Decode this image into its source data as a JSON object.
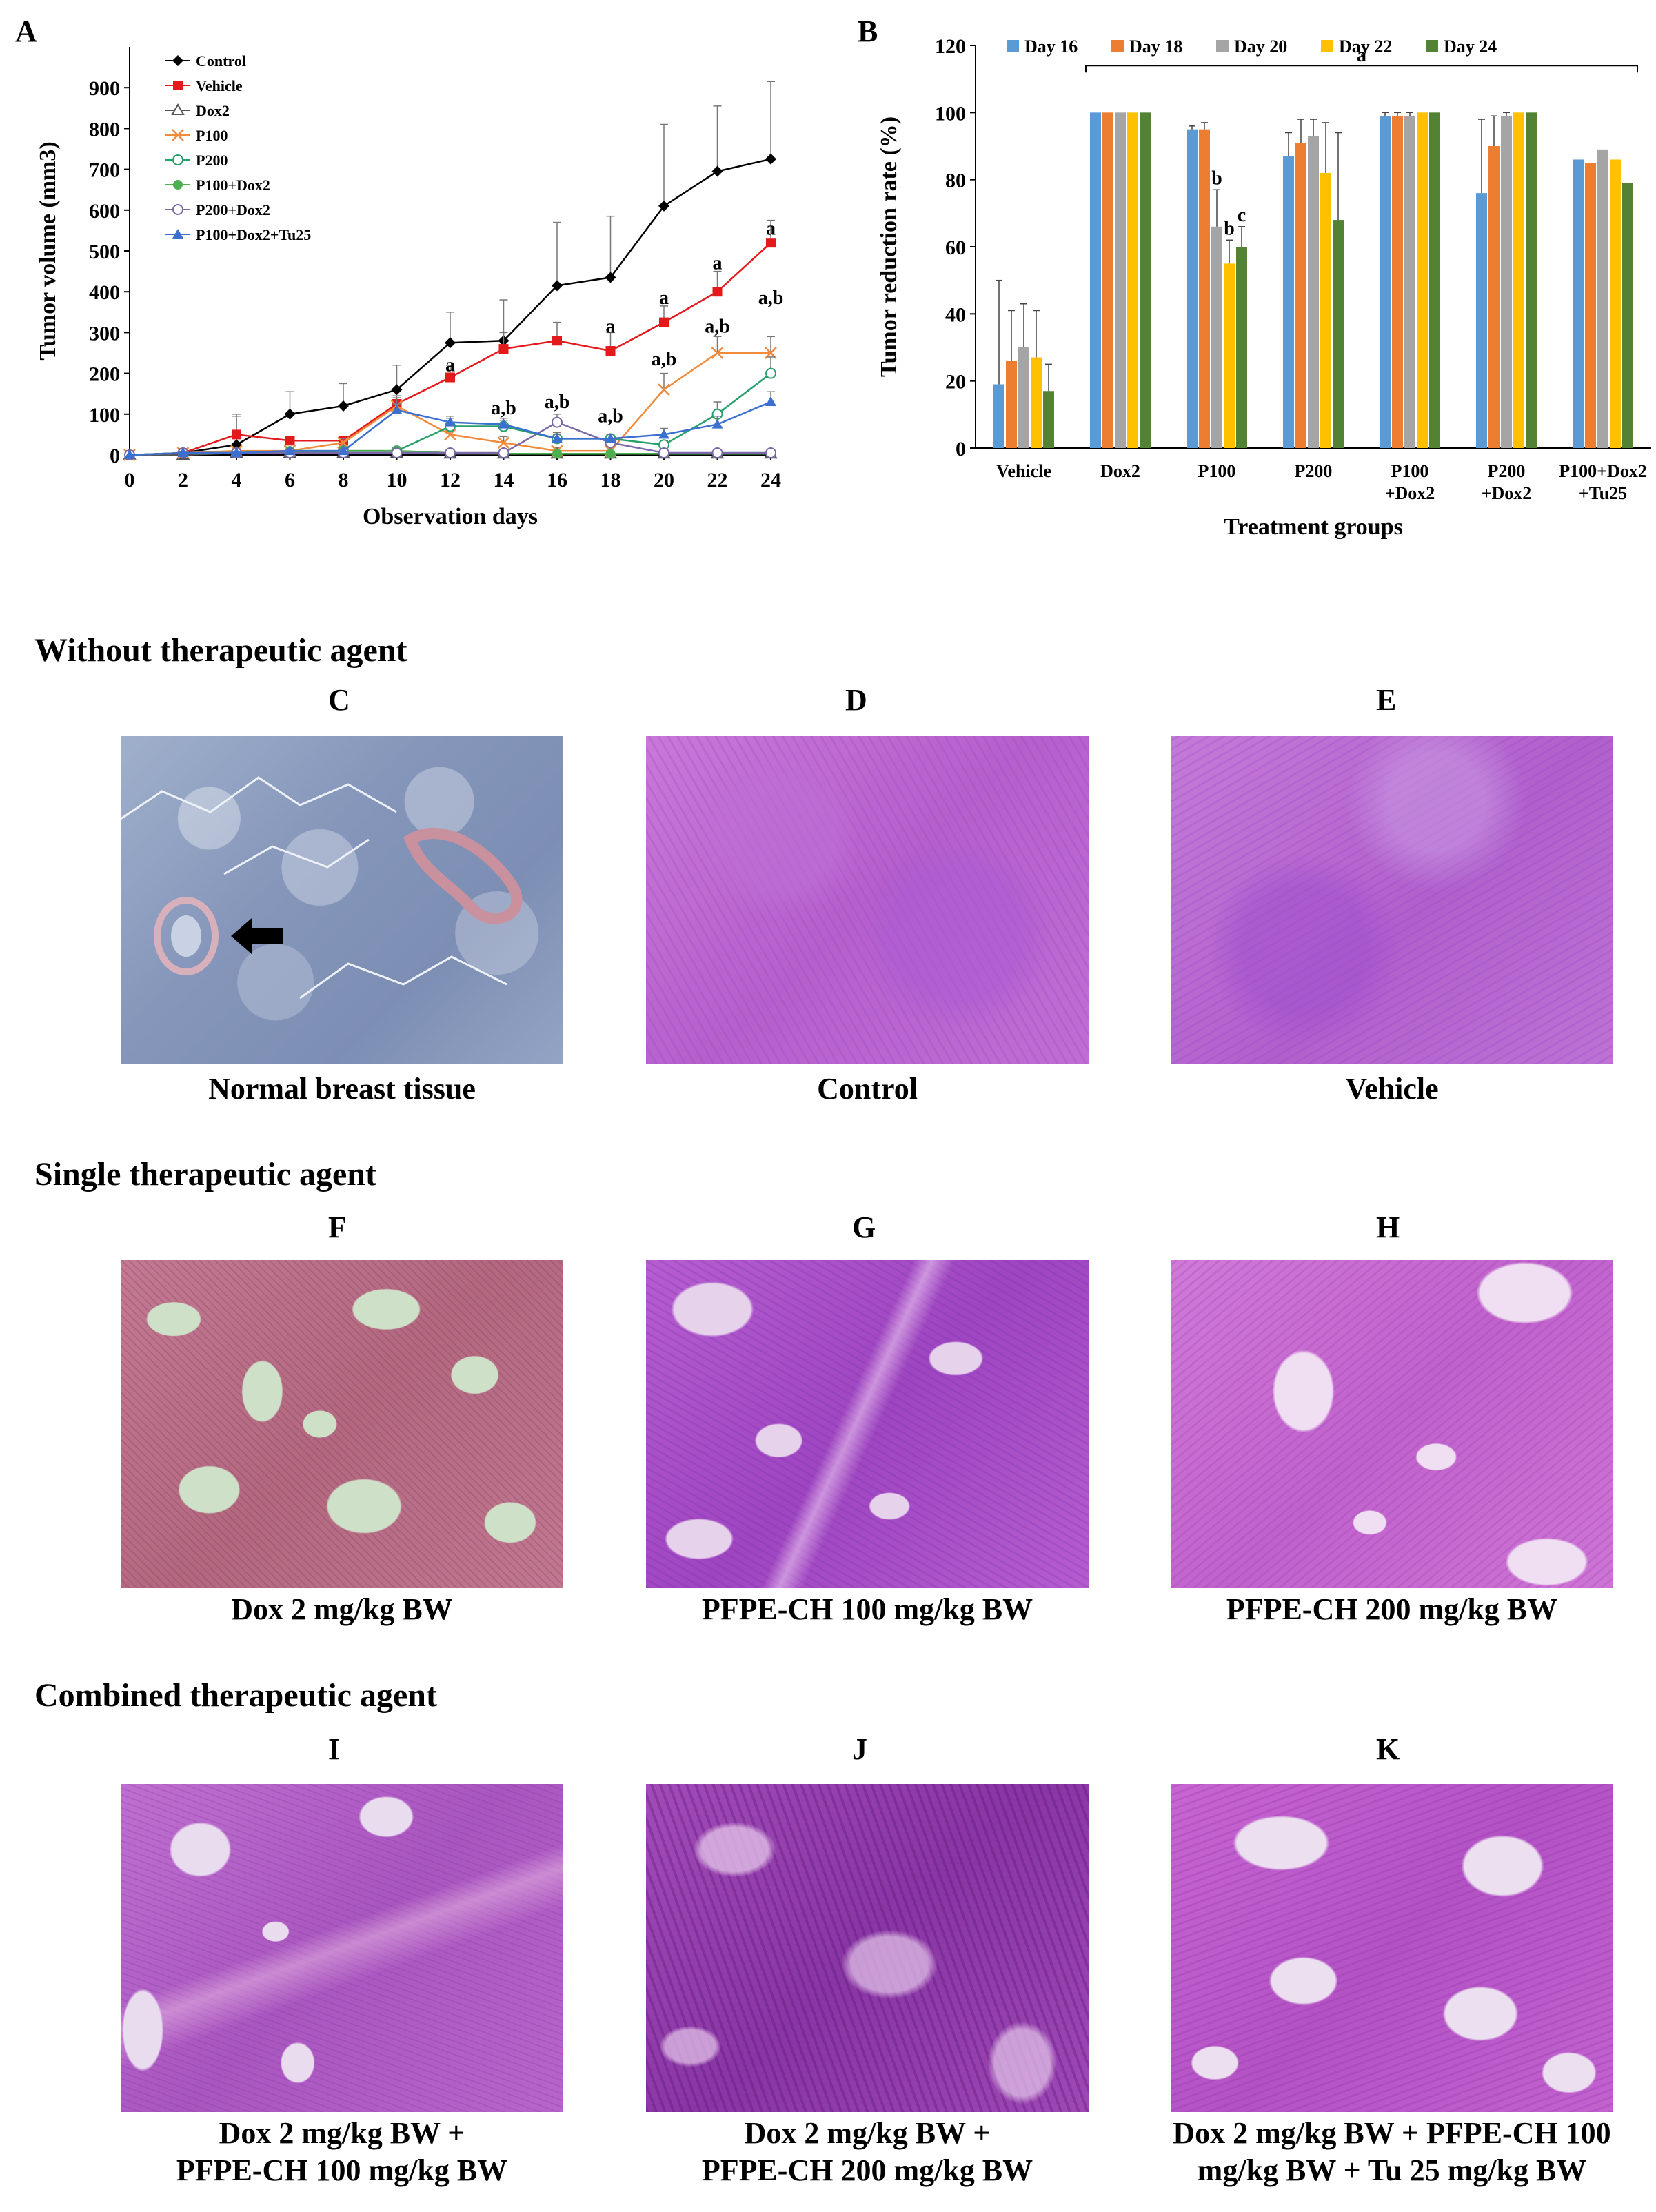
{
  "panel_letters": {
    "A": "A",
    "B": "B",
    "C": "C",
    "D": "D",
    "E": "E",
    "F": "F",
    "G": "G",
    "H": "H",
    "I": "I",
    "J": "J",
    "K": "K"
  },
  "sections": {
    "without": "Without therapeutic agent",
    "single": "Single therapeutic agent",
    "combined": "Combined therapeutic agent"
  },
  "captions": {
    "C": "Normal breast tissue",
    "D": "Control",
    "E": "Vehicle",
    "F": "Dox 2 mg/kg BW",
    "G": "PFPE-CH 100 mg/kg BW",
    "H": "PFPE-CH 200 mg/kg BW",
    "I_line1": "Dox 2 mg/kg BW +",
    "I_line2": "PFPE-CH 100 mg/kg BW",
    "J_line1": "Dox 2 mg/kg BW +",
    "J_line2": "PFPE-CH 200 mg/kg BW",
    "K_line1": "Dox 2 mg/kg BW + PFPE-CH 100",
    "K_line2": "mg/kg BW + Tu 25 mg/kg BW"
  },
  "colors": {
    "control": "#000000",
    "vehicle": "#e31a1c",
    "dox2": "#555555",
    "p100": "#f08a3c",
    "p200": "#27a06a",
    "p100dox2": "#4caf50",
    "p200dox2": "#7b68a8",
    "tu25": "#3b6fd0",
    "day16": "#5b9bd5",
    "day18": "#ed7d31",
    "day20": "#a5a5a5",
    "day22": "#ffc000",
    "day24": "#548235",
    "he_pink": "#c86ad0",
    "he_purple": "#9a3fb8",
    "dox_pink": "#c0708a",
    "normal_blue": "#8a9bc0"
  },
  "chart_data": [
    {
      "type": "line",
      "xlabel": "Observation days",
      "ylabel": "Tumor volume (mm3)",
      "xlim": [
        0,
        24
      ],
      "ylim": [
        0,
        1000
      ],
      "xticks": [
        0,
        2,
        4,
        6,
        8,
        10,
        12,
        14,
        16,
        18,
        20,
        22,
        24
      ],
      "yticks": [
        0,
        100,
        200,
        300,
        400,
        500,
        600,
        700,
        800,
        900
      ],
      "legend_position": "top-left",
      "x": [
        0,
        2,
        4,
        6,
        8,
        10,
        12,
        14,
        16,
        18,
        20,
        22,
        24
      ],
      "series": [
        {
          "name": "Control",
          "marker": "diamond",
          "color": "#000000",
          "values": [
            0,
            5,
            25,
            100,
            120,
            160,
            275,
            280,
            415,
            435,
            610,
            695,
            725
          ],
          "errors": [
            0,
            5,
            75,
            55,
            55,
            60,
            75,
            100,
            155,
            150,
            200,
            160,
            190
          ]
        },
        {
          "name": "Vehicle",
          "marker": "square",
          "color": "#e31a1c",
          "values": [
            0,
            5,
            50,
            35,
            35,
            125,
            190,
            260,
            280,
            255,
            325,
            400,
            520
          ],
          "errors": [
            0,
            5,
            45,
            10,
            10,
            20,
            30,
            40,
            45,
            45,
            40,
            50,
            55
          ]
        },
        {
          "name": "Dox2",
          "marker": "triangle-open",
          "color": "#555555",
          "values": [
            0,
            0,
            5,
            5,
            5,
            5,
            3,
            3,
            3,
            3,
            3,
            3,
            3
          ],
          "errors": [
            0,
            0,
            3,
            3,
            3,
            3,
            3,
            3,
            3,
            3,
            3,
            3,
            3
          ]
        },
        {
          "name": "P100",
          "marker": "x",
          "color": "#f08a3c",
          "values": [
            0,
            5,
            10,
            10,
            30,
            120,
            50,
            30,
            10,
            10,
            160,
            250,
            250
          ],
          "errors": [
            0,
            3,
            5,
            5,
            10,
            20,
            20,
            15,
            8,
            8,
            40,
            40,
            40
          ]
        },
        {
          "name": "P200",
          "marker": "circle-open",
          "color": "#27a06a",
          "values": [
            0,
            5,
            5,
            5,
            10,
            10,
            70,
            70,
            40,
            40,
            25,
            100,
            200
          ],
          "errors": [
            0,
            3,
            3,
            3,
            5,
            5,
            20,
            15,
            15,
            10,
            10,
            30,
            40
          ]
        },
        {
          "name": "P100+Dox2",
          "marker": "circle",
          "color": "#4caf50",
          "values": [
            0,
            5,
            5,
            10,
            10,
            10,
            5,
            3,
            3,
            3,
            3,
            3,
            3
          ],
          "errors": [
            0,
            3,
            3,
            5,
            5,
            5,
            3,
            3,
            3,
            3,
            3,
            3,
            3
          ]
        },
        {
          "name": "P200+Dox2",
          "marker": "circle-open",
          "color": "#7b68a8",
          "values": [
            0,
            5,
            5,
            5,
            5,
            5,
            5,
            5,
            80,
            30,
            5,
            5,
            5
          ],
          "errors": [
            0,
            3,
            3,
            3,
            3,
            3,
            3,
            3,
            20,
            10,
            3,
            3,
            3
          ]
        },
        {
          "name": "P100+Dox2+Tu25",
          "marker": "triangle",
          "color": "#3b6fd0",
          "values": [
            0,
            5,
            5,
            10,
            10,
            110,
            80,
            75,
            40,
            40,
            50,
            75,
            130
          ],
          "errors": [
            0,
            3,
            3,
            5,
            5,
            15,
            15,
            15,
            10,
            10,
            15,
            20,
            25
          ]
        }
      ],
      "annotations": [
        {
          "x": 12,
          "y": 205,
          "text": "a"
        },
        {
          "x": 14,
          "y": 100,
          "text": "a,b"
        },
        {
          "x": 16,
          "y": 115,
          "text": "a,b"
        },
        {
          "x": 18,
          "y": 80,
          "text": "a,b"
        },
        {
          "x": 18,
          "y": 300,
          "text": "a"
        },
        {
          "x": 20,
          "y": 220,
          "text": "a,b"
        },
        {
          "x": 20,
          "y": 370,
          "text": "a"
        },
        {
          "x": 22,
          "y": 300,
          "text": "a,b"
        },
        {
          "x": 22,
          "y": 455,
          "text": "a"
        },
        {
          "x": 24,
          "y": 370,
          "text": "a,b"
        },
        {
          "x": 24,
          "y": 540,
          "text": "a"
        }
      ]
    },
    {
      "type": "bar",
      "xlabel": "Treatment groups",
      "ylabel": "Tumor reduction rate (%)",
      "ylim": [
        0,
        120
      ],
      "yticks": [
        0,
        20,
        40,
        60,
        80,
        100,
        120
      ],
      "legend_position": "top",
      "categories": [
        "Vehicle",
        "Dox2",
        "P100",
        "P200",
        "P100\n+Dox2",
        "P200\n+Dox2",
        "P100+Dox2\n+Tu25"
      ],
      "series": [
        {
          "name": "Day 16",
          "color": "#5b9bd5",
          "values": [
            19,
            100,
            95,
            87,
            99,
            76,
            86
          ],
          "errors": [
            31,
            0,
            1,
            7,
            1,
            22,
            0
          ]
        },
        {
          "name": "Day 18",
          "color": "#ed7d31",
          "values": [
            26,
            100,
            95,
            91,
            99,
            90,
            85
          ],
          "errors": [
            15,
            0,
            2,
            7,
            1,
            9,
            0
          ]
        },
        {
          "name": "Day 20",
          "color": "#a5a5a5",
          "values": [
            30,
            100,
            66,
            93,
            99,
            99,
            89
          ],
          "errors": [
            13,
            0,
            11,
            5,
            1,
            1,
            0
          ]
        },
        {
          "name": "Day 22",
          "color": "#ffc000",
          "values": [
            27,
            100,
            55,
            82,
            100,
            100,
            86
          ],
          "errors": [
            14,
            0,
            7,
            15,
            0,
            0,
            0
          ]
        },
        {
          "name": "Day 24",
          "color": "#548235",
          "values": [
            17,
            100,
            60,
            68,
            100,
            100,
            79
          ],
          "errors": [
            8,
            0,
            6,
            26,
            0,
            0,
            0
          ]
        }
      ],
      "annotations": [
        {
          "text": "a",
          "placement": "bracket over Dox2 to P100+Dox2+Tu25"
        },
        {
          "category": "P100",
          "series": "Day 20",
          "text": "b"
        },
        {
          "category": "P100",
          "series": "Day 22",
          "text": "b"
        },
        {
          "category": "P100",
          "series": "Day 24",
          "text": "c"
        }
      ]
    }
  ]
}
